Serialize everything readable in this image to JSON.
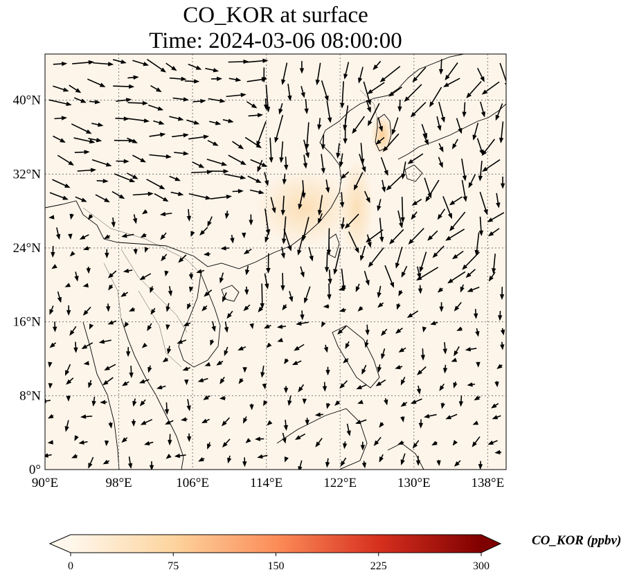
{
  "title": {
    "line1": "CO_KOR at surface",
    "line2": "Time: 2024-03-06 08:00:00"
  },
  "map": {
    "lon_range": [
      90,
      140
    ],
    "lat_range": [
      0,
      45
    ],
    "lon_ticks": [
      "90°E",
      "98°E",
      "106°E",
      "114°E",
      "122°E",
      "130°E",
      "138°E"
    ],
    "lat_ticks": [
      "0°",
      "8°N",
      "16°N",
      "24°N",
      "32°N",
      "40°N"
    ],
    "gridlines": true,
    "field": "CO_KOR",
    "vectors": "wind",
    "background_color": "#fdf5ea",
    "plume_color": "#fbdcb0"
  },
  "colorbar": {
    "label": "CO_KOR (ppbv)",
    "ticks": [
      "0",
      "75",
      "150",
      "225",
      "300"
    ],
    "min": 0,
    "max": 300,
    "colormap": "OrRd",
    "colors": [
      "#fff7ec",
      "#fdd49e",
      "#fc8d59",
      "#d7301f",
      "#7f0000"
    ],
    "extend": "both"
  }
}
